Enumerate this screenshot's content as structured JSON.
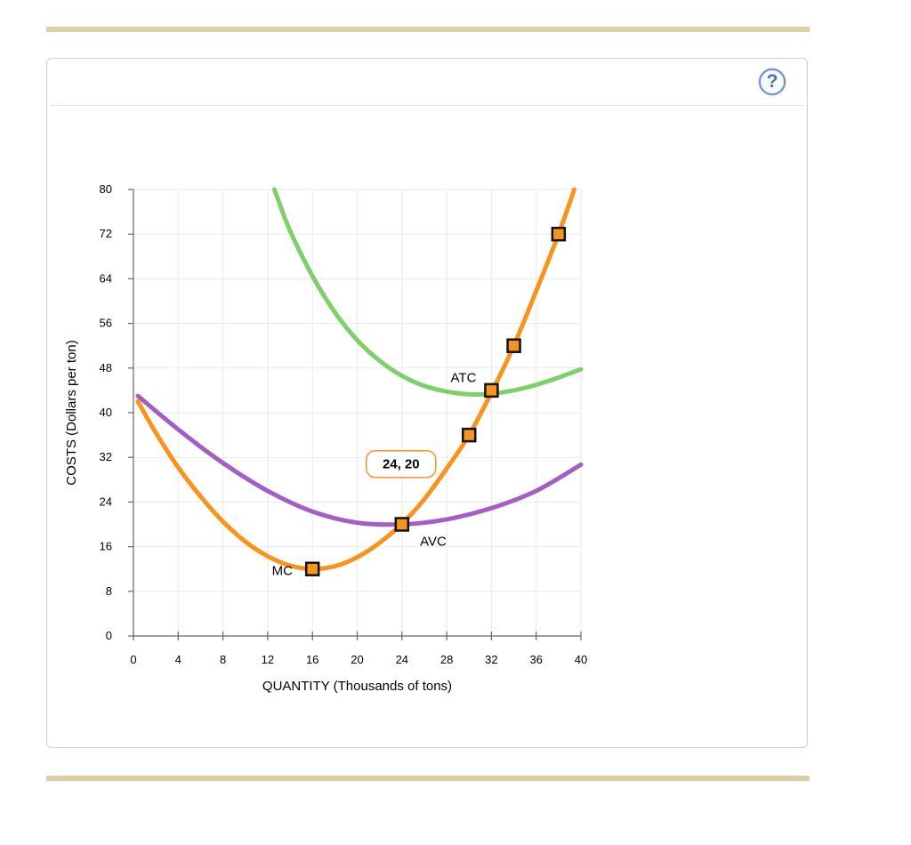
{
  "help_label": "?",
  "chart_data": {
    "type": "line",
    "xlabel": "QUANTITY (Thousands of tons)",
    "ylabel": "COSTS (Dollars per ton)",
    "xlim": [
      0,
      40
    ],
    "ylim": [
      0,
      80
    ],
    "xticks": [
      0,
      4,
      8,
      12,
      16,
      20,
      24,
      28,
      32,
      36,
      40
    ],
    "yticks": [
      0,
      8,
      16,
      24,
      32,
      40,
      48,
      56,
      64,
      72,
      80
    ],
    "grid": true,
    "series": [
      {
        "name": "MC",
        "color": "#f7941d",
        "x": [
          0.4,
          2,
          4,
          6,
          8,
          10,
          12,
          14,
          16,
          18,
          20,
          22,
          24,
          26,
          28,
          30,
          32,
          34,
          36,
          38,
          39.4
        ],
        "y": [
          42,
          36.4,
          30.2,
          25,
          20.5,
          16.9,
          14.3,
          12.6,
          12,
          12.5,
          14.1,
          16.7,
          20.1,
          24.5,
          30,
          36,
          43.6,
          52,
          61.8,
          72,
          80
        ]
      },
      {
        "name": "AVC",
        "color": "#a35ec7",
        "x": [
          0.4,
          4,
          8,
          12,
          16,
          20,
          24,
          28,
          32,
          36,
          40
        ],
        "y": [
          43,
          37,
          31,
          26,
          22.3,
          20.3,
          20,
          20.9,
          22.9,
          26,
          30.7
        ]
      },
      {
        "name": "ATC",
        "color": "#7ed06a",
        "x": [
          12.6,
          14,
          16,
          18,
          20,
          22,
          24,
          26,
          28,
          30,
          32,
          34,
          36,
          38,
          40
        ],
        "y": [
          80,
          72.6,
          64.5,
          58,
          53,
          49.3,
          46.6,
          44.8,
          43.8,
          43.3,
          43.4,
          44,
          45,
          46.3,
          47.8
        ]
      }
    ],
    "points": [
      {
        "x": 16,
        "y": 12
      },
      {
        "x": 24,
        "y": 20
      },
      {
        "x": 30,
        "y": 36
      },
      {
        "x": 32,
        "y": 44
      },
      {
        "x": 34,
        "y": 52
      },
      {
        "x": 38,
        "y": 72
      }
    ],
    "curve_labels": [
      {
        "series": "MC",
        "text": "MC",
        "x": 13.3,
        "y": 11.7
      },
      {
        "series": "AVC",
        "text": "AVC",
        "x": 26.8,
        "y": 17
      },
      {
        "series": "ATC",
        "text": "ATC",
        "x": 29.5,
        "y": 46.3
      }
    ],
    "annotation": {
      "text": "24, 20",
      "x": 24,
      "y": 30.8
    },
    "point_color": "#f7941d"
  }
}
